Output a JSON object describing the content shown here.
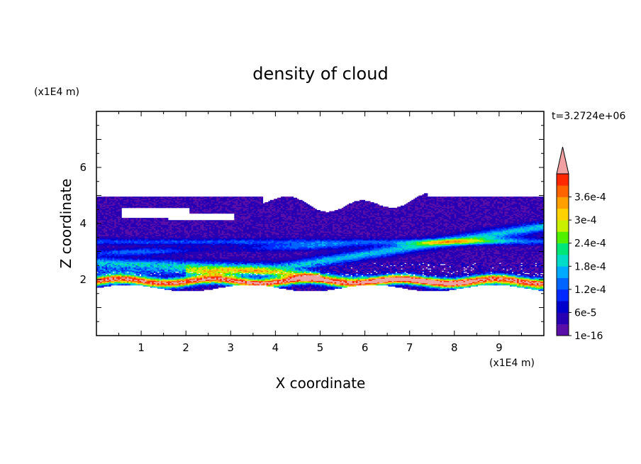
{
  "chart_data": {
    "type": "heatmap",
    "title": "density of cloud",
    "xlabel": "X coordinate",
    "ylabel": "Z coordinate",
    "x_unit": "(x1E4 m)",
    "y_unit": "(x1E4 m)",
    "time_label": "t=3.2724e+06",
    "xlim": [
      0,
      10
    ],
    "ylim": [
      0,
      8
    ],
    "xticks": [
      "1",
      "2",
      "3",
      "4",
      "5",
      "6",
      "7",
      "8",
      "9"
    ],
    "yticks": [
      "2",
      "4",
      "6"
    ],
    "grid": false,
    "colorbar": {
      "labels": [
        "1e-16",
        "6e-5",
        "1.2e-4",
        "1.8e-4",
        "2.4e-4",
        "3e-4",
        "3.6e-4"
      ],
      "levels": [
        1e-16,
        3e-05,
        6e-05,
        9e-05,
        0.00012,
        0.00015,
        0.00018,
        0.00021,
        0.00024,
        0.00027,
        0.0003,
        0.00033,
        0.00036,
        0.00039
      ],
      "colors": [
        "#5a0fa8",
        "#2800b4",
        "#0000cd",
        "#0028ff",
        "#0064ff",
        "#00aaff",
        "#00dcc8",
        "#00e678",
        "#50f000",
        "#c8f000",
        "#ffd200",
        "#ffa000",
        "#ff6400",
        "#ff2800",
        "#f0a0a0"
      ],
      "extend": "max"
    },
    "regions": {
      "cloud_top_z": 4.95,
      "cloud_base_z": 1.7,
      "dense_layer_z": [
        1.8,
        2.2
      ],
      "bands_z": [
        2.6,
        3.0,
        3.4
      ]
    }
  }
}
